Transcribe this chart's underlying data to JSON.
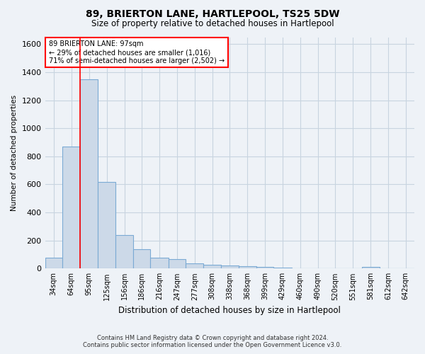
{
  "title": "89, BRIERTON LANE, HARTLEPOOL, TS25 5DW",
  "subtitle": "Size of property relative to detached houses in Hartlepool",
  "xlabel": "Distribution of detached houses by size in Hartlepool",
  "ylabel": "Number of detached properties",
  "footer_line1": "Contains HM Land Registry data © Crown copyright and database right 2024.",
  "footer_line2": "Contains public sector information licensed under the Open Government Licence v3.0.",
  "annotation_line1": "89 BRIERTON LANE: 97sqm",
  "annotation_line2": "← 29% of detached houses are smaller (1,016)",
  "annotation_line3": "71% of semi-detached houses are larger (2,502) →",
  "bar_color": "#ccd9e8",
  "bar_edge_color": "#7baad4",
  "red_line_x": 95,
  "categories": [
    "34sqm",
    "64sqm",
    "95sqm",
    "125sqm",
    "156sqm",
    "186sqm",
    "216sqm",
    "247sqm",
    "277sqm",
    "308sqm",
    "338sqm",
    "368sqm",
    "399sqm",
    "429sqm",
    "460sqm",
    "490sqm",
    "520sqm",
    "551sqm",
    "581sqm",
    "612sqm",
    "642sqm"
  ],
  "bin_left_edges": [
    34,
    64,
    95,
    125,
    156,
    186,
    216,
    247,
    277,
    308,
    338,
    368,
    399,
    429,
    460,
    490,
    520,
    551,
    581,
    612,
    642
  ],
  "bin_right_edges": [
    64,
    95,
    125,
    156,
    186,
    216,
    247,
    277,
    308,
    338,
    368,
    399,
    429,
    460,
    490,
    520,
    551,
    581,
    612,
    642,
    672
  ],
  "values": [
    75,
    870,
    1350,
    620,
    240,
    140,
    75,
    65,
    38,
    25,
    22,
    18,
    10,
    5,
    2,
    0,
    0,
    0,
    12,
    0,
    0
  ],
  "ylim": [
    0,
    1650
  ],
  "yticks": [
    0,
    200,
    400,
    600,
    800,
    1000,
    1200,
    1400,
    1600
  ],
  "grid_color": "#c8d4e0",
  "background_color": "#eef2f7",
  "plot_bg_color": "#eef2f7"
}
